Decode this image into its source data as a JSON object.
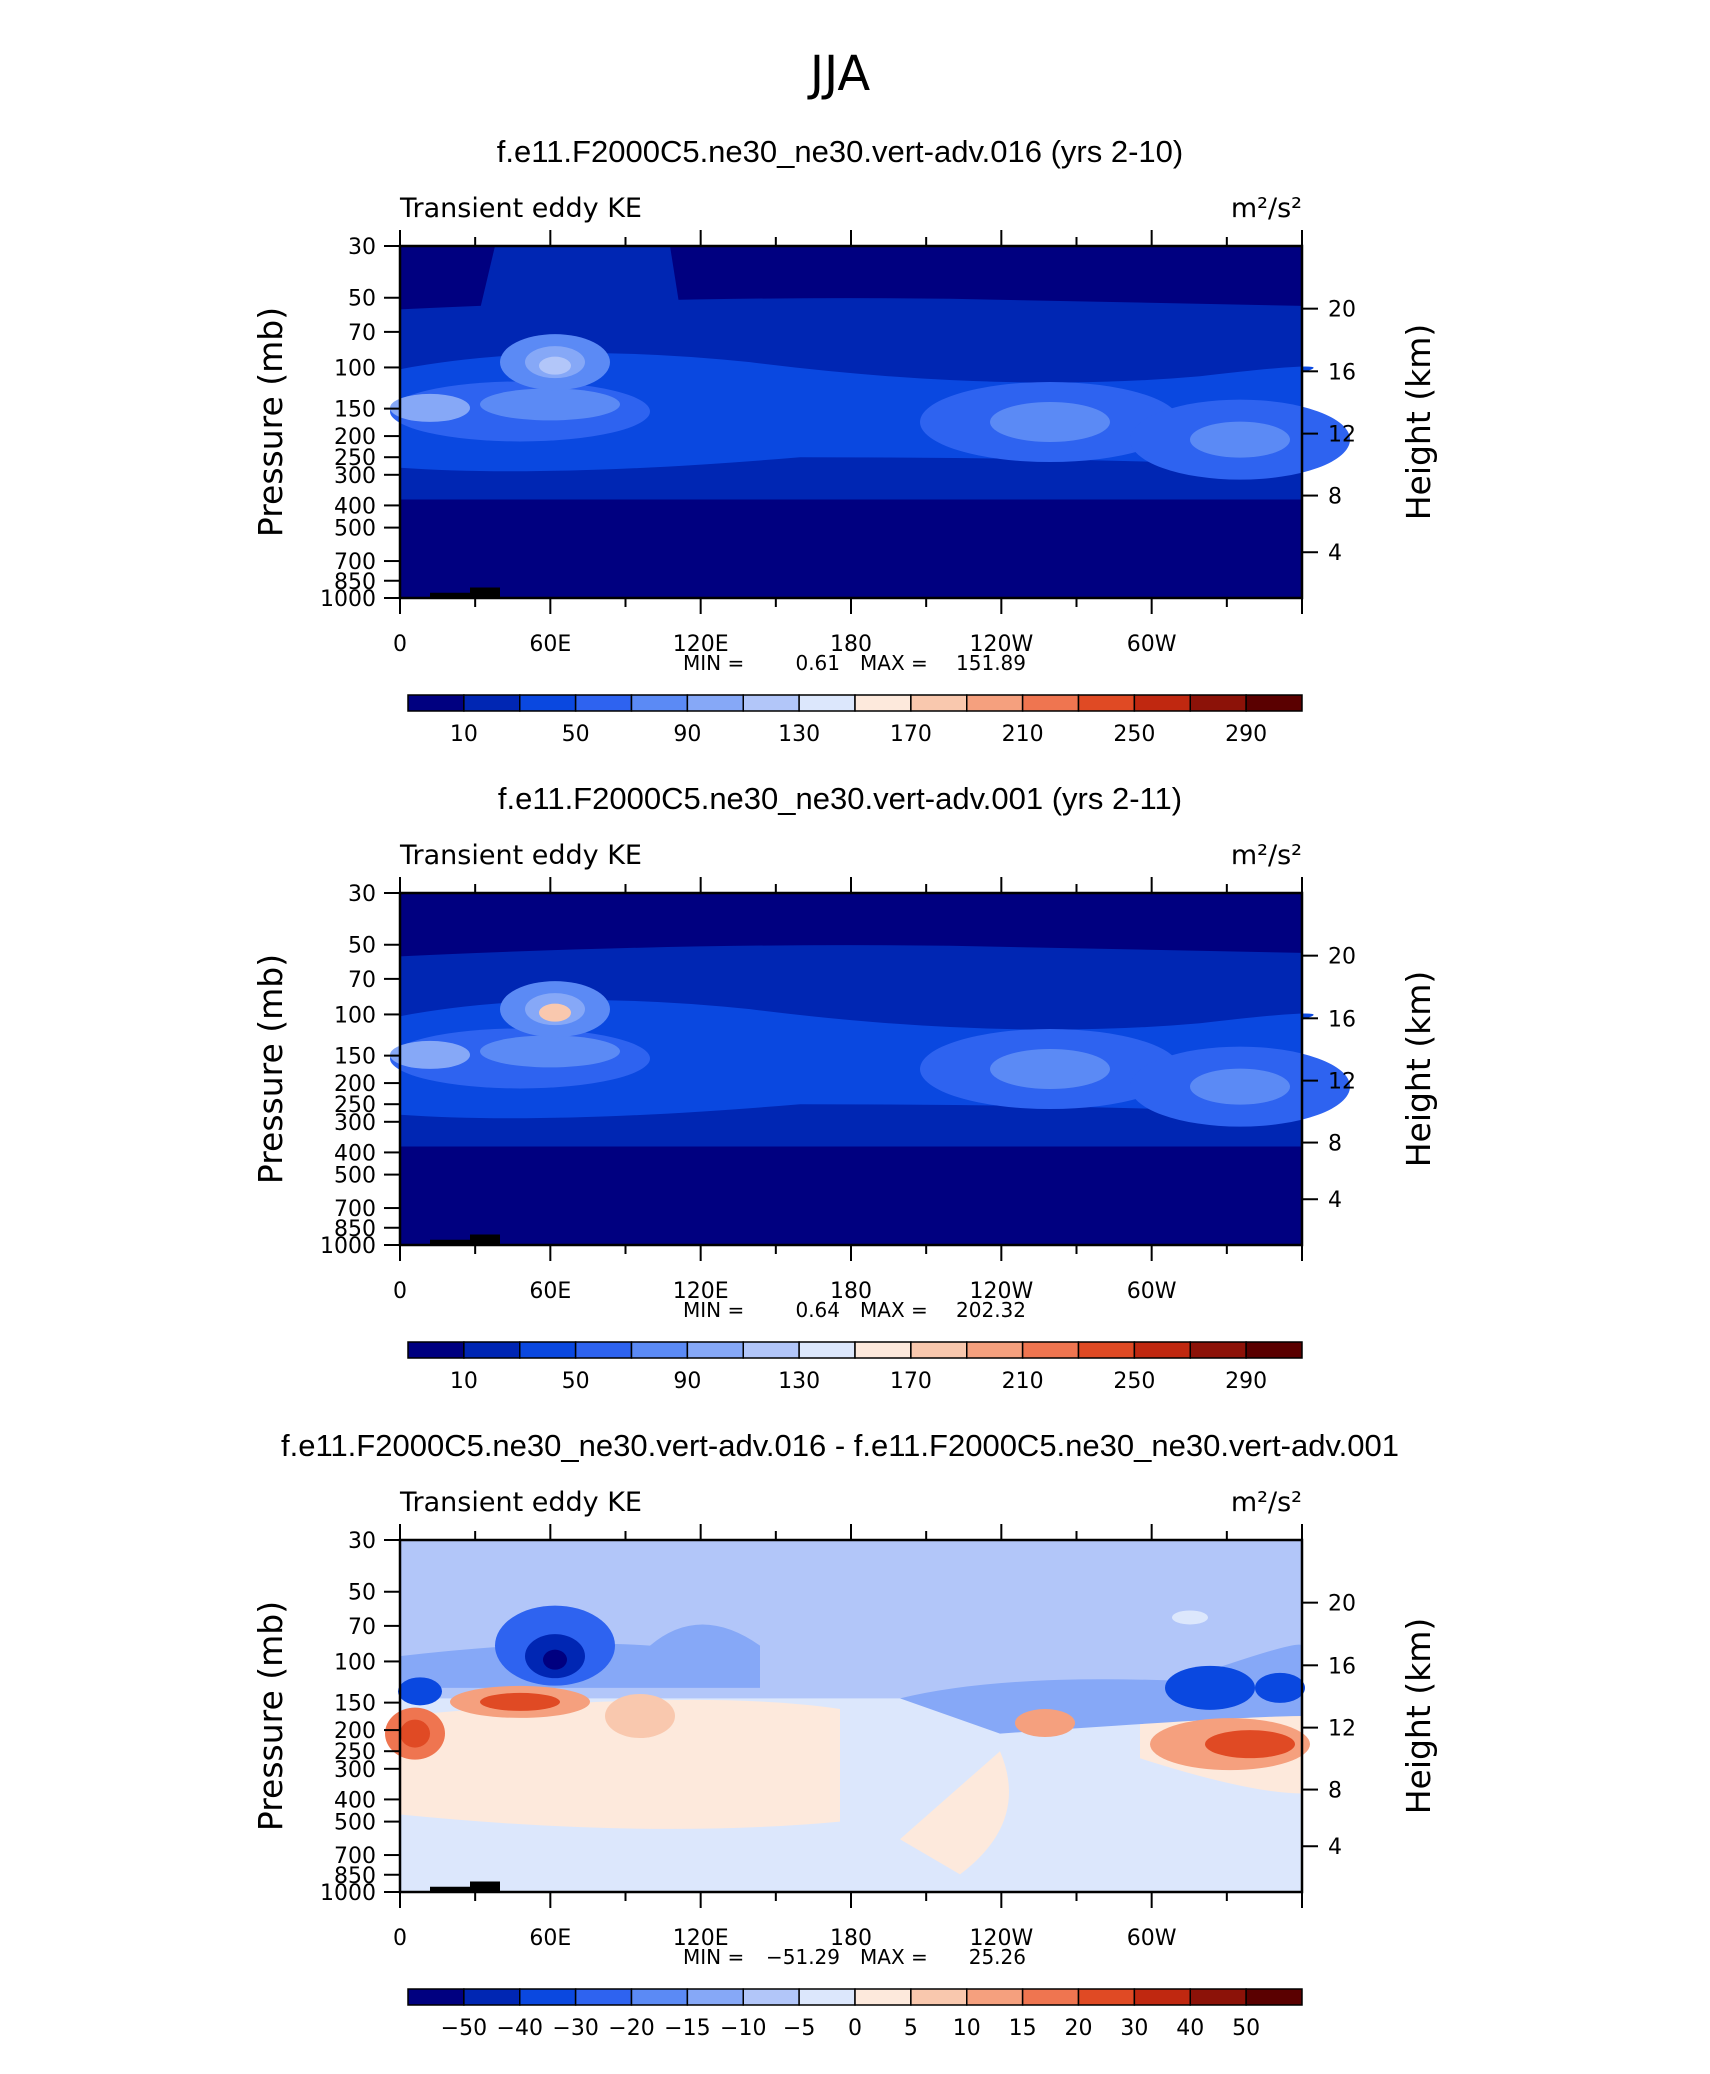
{
  "figure": {
    "season_title": "JJA",
    "palette": {
      "abs": [
        "#000080",
        "#0026b3",
        "#0a48e0",
        "#2e63f0",
        "#5b8af5",
        "#86a8f7",
        "#b2c6f9",
        "#dce7fc",
        "#fde9dc",
        "#f9c8ae",
        "#f5a07e",
        "#ef7550",
        "#e04a24",
        "#c02810",
        "#8c1208",
        "#5a0000"
      ],
      "diff": [
        "#000080",
        "#0026b3",
        "#0a48e0",
        "#2e63f0",
        "#5b8af5",
        "#86a8f7",
        "#b2c6f9",
        "#dce7fc",
        "#fde9dc",
        "#f9c8ae",
        "#f5a07e",
        "#ef7550",
        "#e04a24",
        "#c02810",
        "#8c1208",
        "#5a0000"
      ]
    }
  },
  "chart_data": [
    {
      "type": "heatmap",
      "title": "f.e11.F2000C5.ne30_ne30.vert-adv.016 (yrs 2-10)",
      "left_label": "Transient eddy KE",
      "units_label": "m²/s²",
      "ylabel": "Pressure  (mb)",
      "ylabel_right": "Height  (km)",
      "x_ticks": [
        "0",
        "60E",
        "120E",
        "180",
        "120W",
        "60W"
      ],
      "y_ticks": [
        "30",
        "50",
        "70",
        "100",
        "150",
        "200",
        "250",
        "300",
        "400",
        "500",
        "700",
        "850",
        "1000"
      ],
      "y_ticks_right": [
        "20",
        "16",
        "12",
        "8",
        "4"
      ],
      "min_label": "MIN =",
      "min_value": "0.61",
      "max_label": "MAX =",
      "max_value": "151.89",
      "colorbar_labels": [
        "10",
        "50",
        "90",
        "130",
        "170",
        "210",
        "250",
        "290"
      ],
      "palette": "abs"
    },
    {
      "type": "heatmap",
      "title": "f.e11.F2000C5.ne30_ne30.vert-adv.001 (yrs 2-11)",
      "left_label": "Transient eddy KE",
      "units_label": "m²/s²",
      "ylabel": "Pressure  (mb)",
      "ylabel_right": "Height  (km)",
      "x_ticks": [
        "0",
        "60E",
        "120E",
        "180",
        "120W",
        "60W"
      ],
      "y_ticks": [
        "30",
        "50",
        "70",
        "100",
        "150",
        "200",
        "250",
        "300",
        "400",
        "500",
        "700",
        "850",
        "1000"
      ],
      "y_ticks_right": [
        "20",
        "16",
        "12",
        "8",
        "4"
      ],
      "min_label": "MIN =",
      "min_value": "0.64",
      "max_label": "MAX =",
      "max_value": "202.32",
      "colorbar_labels": [
        "10",
        "50",
        "90",
        "130",
        "170",
        "210",
        "250",
        "290"
      ],
      "palette": "abs"
    },
    {
      "type": "heatmap",
      "title": "f.e11.F2000C5.ne30_ne30.vert-adv.016 - f.e11.F2000C5.ne30_ne30.vert-adv.001",
      "left_label": "Transient eddy KE",
      "units_label": "m²/s²",
      "ylabel": "Pressure  (mb)",
      "ylabel_right": "Height  (km)",
      "x_ticks": [
        "0",
        "60E",
        "120E",
        "180",
        "120W",
        "60W"
      ],
      "y_ticks": [
        "30",
        "50",
        "70",
        "100",
        "150",
        "200",
        "250",
        "300",
        "400",
        "500",
        "700",
        "850",
        "1000"
      ],
      "y_ticks_right": [
        "20",
        "16",
        "12",
        "8",
        "4"
      ],
      "min_label": "MIN =",
      "min_value": "−51.29",
      "max_label": "MAX =",
      "max_value": "25.26",
      "colorbar_labels": [
        "−50",
        "−40",
        "−30",
        "−20",
        "−15",
        "−10",
        "−5",
        "0",
        "5",
        "10",
        "15",
        "20",
        "30",
        "40",
        "50"
      ],
      "palette": "diff"
    }
  ]
}
